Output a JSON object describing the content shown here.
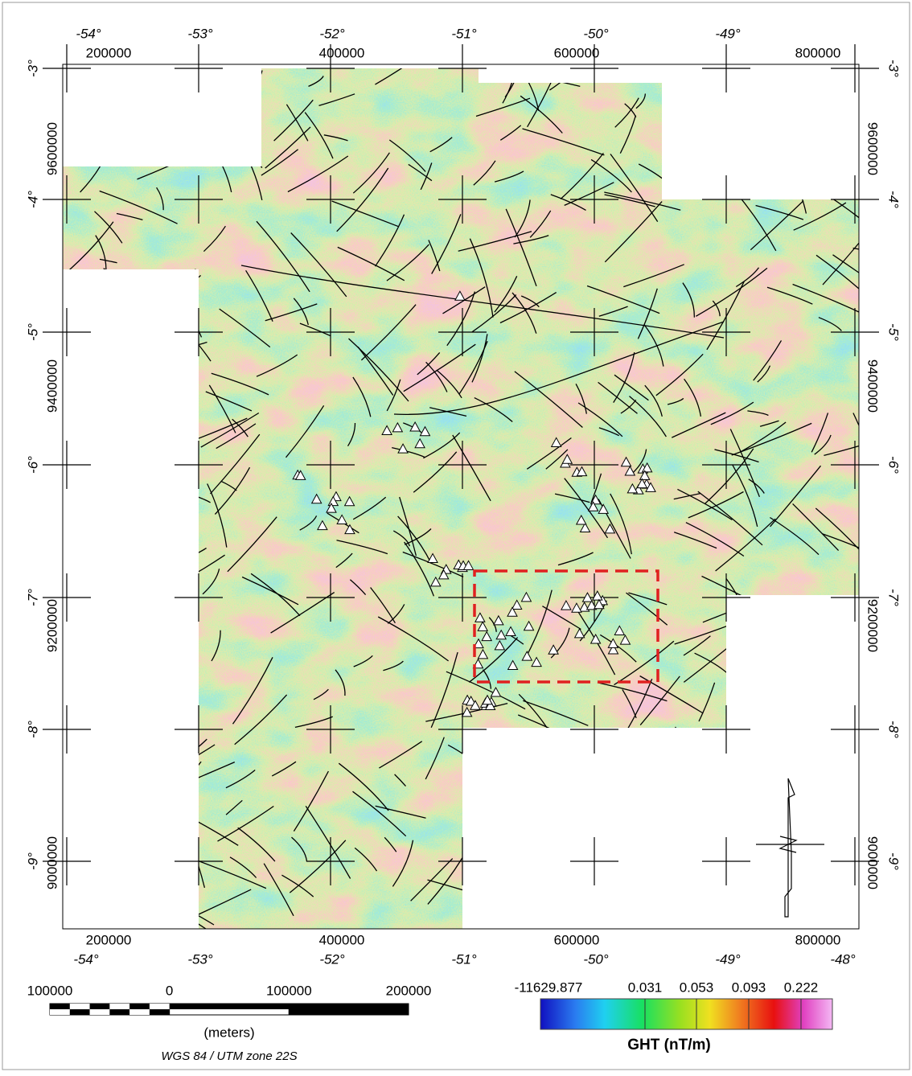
{
  "map": {
    "top_lon_labels": [
      "-54°",
      "-53°",
      "-52°",
      "-51°",
      "-50°",
      "-49°"
    ],
    "top_utm_labels": [
      "200000",
      "400000",
      "600000",
      "800000"
    ],
    "left_lat_labels": [
      "-3°",
      "-4°",
      "-5°",
      "-6°",
      "-7°",
      "-8°",
      "-9°"
    ],
    "left_utm_labels": [
      "9600000",
      "9400000",
      "9200000",
      "9000000"
    ],
    "right_lat_labels": [
      "-3°",
      "-4°",
      "-5°",
      "-6°",
      "-7°",
      "-8°",
      "-9°"
    ],
    "right_utm_labels": [
      "9600000",
      "9400000",
      "9200000",
      "9000000"
    ],
    "bottom_utm_labels": [
      "200000",
      "400000",
      "600000",
      "800000"
    ],
    "bottom_lon_labels": [
      "-54°",
      "-53°",
      "-52°",
      "-51°",
      "-50°",
      "-49°",
      "-48°"
    ]
  },
  "scale_bar": {
    "labels": [
      "100000",
      "0",
      "100000",
      "200000"
    ],
    "unit": "(meters)",
    "projection": "WGS 84 / UTM zone 22S"
  },
  "colorbar": {
    "labels": [
      "-11629.877",
      "0.031",
      "0.053",
      "0.093",
      "0.222"
    ],
    "title": "GHT (nT/m)"
  }
}
